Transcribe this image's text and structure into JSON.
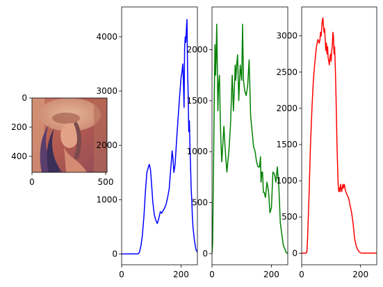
{
  "chart_data": [
    {
      "type": "image",
      "description_only": false,
      "xlim": [
        0,
        512
      ],
      "ylim": [
        512,
        0
      ],
      "xticks": [
        0,
        500
      ],
      "yticks": [
        0,
        200,
        400
      ],
      "xtick_labels": [
        "0",
        "500"
      ],
      "ytick_labels": [
        "0",
        "200",
        "400"
      ]
    },
    {
      "type": "line",
      "color": "#0000ff",
      "xlim": [
        0,
        255
      ],
      "ylim": [
        -200,
        4550
      ],
      "xticks": [
        0,
        200
      ],
      "yticks": [
        0,
        1000,
        2000,
        3000,
        4000
      ],
      "xtick_labels": [
        "0",
        "200"
      ],
      "ytick_labels": [
        "0",
        "1000",
        "2000",
        "3000",
        "4000"
      ],
      "x": [
        0,
        55,
        60,
        65,
        70,
        75,
        80,
        85,
        90,
        93,
        97,
        100,
        105,
        110,
        115,
        120,
        125,
        130,
        135,
        140,
        145,
        150,
        155,
        160,
        165,
        170,
        173,
        176,
        180,
        185,
        190,
        195,
        200,
        203,
        206,
        208,
        210,
        212,
        214,
        216,
        218,
        220,
        222,
        224,
        226,
        228,
        230,
        232,
        234,
        236,
        238,
        240,
        245,
        250,
        255
      ],
      "y": [
        0,
        0,
        30,
        150,
        350,
        700,
        1150,
        1500,
        1600,
        1650,
        1550,
        1350,
        950,
        720,
        620,
        560,
        650,
        780,
        750,
        800,
        850,
        920,
        1050,
        1200,
        1550,
        1900,
        1750,
        1500,
        1650,
        2100,
        2500,
        2900,
        3250,
        3350,
        3500,
        3150,
        2700,
        3800,
        4000,
        3900,
        4150,
        4320,
        3350,
        2950,
        2250,
        2450,
        1950,
        1600,
        1200,
        1000,
        700,
        500,
        250,
        80,
        30
      ]
    },
    {
      "type": "line",
      "color": "#008000",
      "xlim": [
        0,
        255
      ],
      "ylim": [
        -110,
        2420
      ],
      "xticks": [
        0,
        200
      ],
      "yticks": [
        0,
        500,
        1000,
        1500,
        2000
      ],
      "xtick_labels": [
        "0",
        "200"
      ],
      "ytick_labels": [
        "0",
        "500",
        "1000",
        "1500",
        "2000"
      ],
      "x": [
        0,
        2,
        5,
        8,
        10,
        12,
        14,
        16,
        18,
        20,
        22,
        25,
        28,
        30,
        33,
        36,
        40,
        45,
        50,
        55,
        58,
        60,
        62,
        65,
        68,
        72,
        75,
        78,
        80,
        83,
        86,
        90,
        95,
        100,
        103,
        106,
        110,
        115,
        120,
        125,
        130,
        135,
        140,
        145,
        150,
        155,
        160,
        163,
        165,
        168,
        170,
        173,
        176,
        180,
        185,
        190,
        195,
        200,
        205,
        210,
        215,
        220,
        225,
        230,
        240,
        250,
        255
      ],
      "y": [
        0,
        100,
        800,
        1600,
        2050,
        1750,
        1950,
        2250,
        1800,
        1400,
        1650,
        1750,
        1300,
        1100,
        900,
        1050,
        1250,
        1000,
        800,
        950,
        1050,
        1150,
        1250,
        1500,
        1750,
        1400,
        1600,
        1850,
        1700,
        1850,
        1950,
        1500,
        1850,
        1700,
        2250,
        1700,
        1600,
        1550,
        1650,
        1900,
        1350,
        1200,
        1050,
        1000,
        900,
        850,
        850,
        950,
        700,
        800,
        800,
        600,
        600,
        550,
        700,
        620,
        400,
        450,
        800,
        780,
        700,
        850,
        650,
        300,
        80,
        10,
        0
      ]
    },
    {
      "type": "line",
      "color": "#ff0000",
      "xlim": [
        0,
        255
      ],
      "ylim": [
        -160,
        3400
      ],
      "xticks": [
        0,
        200
      ],
      "yticks": [
        0,
        500,
        1000,
        1500,
        2000,
        2500,
        3000
      ],
      "xtick_labels": [
        "0",
        "200"
      ],
      "ytick_labels": [
        "0",
        "500",
        "1000",
        "1500",
        "2000",
        "2500",
        "3000"
      ],
      "x": [
        0,
        15,
        18,
        20,
        25,
        30,
        35,
        40,
        45,
        50,
        55,
        60,
        62,
        64,
        66,
        68,
        70,
        72,
        74,
        76,
        78,
        80,
        82,
        84,
        86,
        88,
        90,
        92,
        94,
        96,
        98,
        100,
        102,
        104,
        106,
        108,
        110,
        112,
        114,
        116,
        118,
        120,
        122,
        124,
        126,
        128,
        130,
        132,
        134,
        136,
        138,
        140,
        142,
        145,
        148,
        150,
        155,
        160,
        165,
        170,
        175,
        180,
        185,
        190,
        195,
        200,
        205,
        210,
        220,
        230,
        240,
        255
      ],
      "y": [
        0,
        0,
        30,
        200,
        800,
        1500,
        2000,
        2400,
        2650,
        2850,
        2950,
        2900,
        2950,
        3050,
        3000,
        3100,
        3200,
        3250,
        3150,
        3050,
        3100,
        2950,
        2800,
        2900,
        2750,
        2850,
        2700,
        2650,
        2600,
        2700,
        2750,
        2650,
        2800,
        2850,
        3050,
        3000,
        2750,
        2850,
        2600,
        2300,
        1900,
        1500,
        1200,
        950,
        850,
        900,
        850,
        950,
        900,
        850,
        900,
        950,
        900,
        950,
        880,
        850,
        800,
        750,
        650,
        550,
        400,
        200,
        100,
        50,
        20,
        5,
        0,
        0,
        0,
        0,
        0,
        0
      ]
    }
  ],
  "colors": {
    "axes": "#000000",
    "background": "#ffffff"
  }
}
